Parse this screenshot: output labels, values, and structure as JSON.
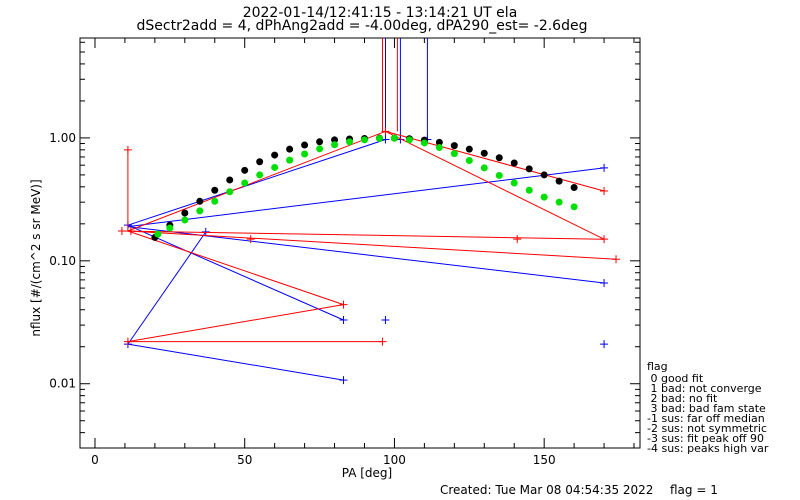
{
  "chart_data": {
    "type": "scatter",
    "title": "2022-01-14/12:41:15 - 13:14:21 UT ela",
    "subtitle": "dSectr2add = 4, dPhAng2add = -4.00deg, dPA290_est=  -2.6deg",
    "xlabel": "PA [deg]",
    "ylabel": "nflux [#/(cm^2 s sr MeV)]",
    "xlim": [
      -5,
      182
    ],
    "ylim": [
      0.003,
      6.5
    ],
    "yscale": "log",
    "x_ticks": [
      0,
      50,
      100,
      150
    ],
    "x_tick_labels": [
      "0",
      "50",
      "100",
      "150"
    ],
    "y_ticks": [
      0.01,
      0.1,
      1.0
    ],
    "y_tick_labels": [
      "0.01",
      "0.10",
      "1.00"
    ],
    "grid": false,
    "series": [
      {
        "color": "#0000ff",
        "marker": "+",
        "points": [
          [
            11,
            0.195
          ],
          [
            37,
            0.172
          ],
          [
            11,
            0.021
          ],
          [
            83,
            0.033
          ],
          [
            97,
            0.033
          ],
          [
            170,
            0.021
          ],
          [
            83,
            0.0107
          ],
          [
            170,
            0.066
          ],
          [
            170,
            0.57
          ],
          [
            97,
            0.97
          ],
          [
            102,
            0.97
          ],
          [
            111,
            0.97
          ]
        ],
        "segments": [
          [
            [
              11,
              0.195
            ],
            [
              97,
              0.97
            ]
          ],
          [
            [
              11,
              0.195
            ],
            [
              83,
              0.033
            ]
          ],
          [
            [
              11,
              0.19
            ],
            [
              170,
              0.57
            ]
          ],
          [
            [
              11,
              0.19
            ],
            [
              170,
              0.066
            ]
          ],
          [
            [
              37,
              0.172
            ],
            [
              11,
              0.021
            ]
          ],
          [
            [
              11,
              0.021
            ],
            [
              83,
              0.0107
            ]
          ],
          [
            [
              97,
              0.97
            ],
            [
              97,
              6.5
            ]
          ],
          [
            [
              102,
              0.97
            ],
            [
              102,
              6.5
            ]
          ],
          [
            [
              111,
              0.97
            ],
            [
              111,
              6.5
            ]
          ]
        ]
      },
      {
        "color": "#ff0000",
        "marker": "+",
        "points": [
          [
            11,
            0.8
          ],
          [
            9,
            0.175
          ],
          [
            12,
            0.175
          ],
          [
            52,
            0.15
          ],
          [
            83,
            0.044
          ],
          [
            11,
            0.022
          ],
          [
            96,
            0.022
          ],
          [
            97,
            1.13
          ],
          [
            141,
            0.15
          ],
          [
            170,
            0.15
          ],
          [
            170,
            0.37
          ],
          [
            174,
            0.103
          ]
        ],
        "segments": [
          [
            [
              11,
              0.8
            ],
            [
              11,
              0.175
            ]
          ],
          [
            [
              9,
              0.175
            ],
            [
              170,
              0.15
            ]
          ],
          [
            [
              11,
              0.175
            ],
            [
              83,
              0.044
            ]
          ],
          [
            [
              11,
              0.175
            ],
            [
              174,
              0.103
            ]
          ],
          [
            [
              11,
              0.175
            ],
            [
              97,
              1.13
            ]
          ],
          [
            [
              97,
              1.13
            ],
            [
              170,
              0.15
            ]
          ],
          [
            [
              97,
              1.13
            ],
            [
              170,
              0.37
            ]
          ],
          [
            [
              11,
              0.022
            ],
            [
              83,
              0.044
            ]
          ],
          [
            [
              11,
              0.022
            ],
            [
              96,
              0.022
            ]
          ],
          [
            [
              96,
              1.13
            ],
            [
              96,
              6.5
            ]
          ],
          [
            [
              101,
              1.13
            ],
            [
              101,
              6.5
            ]
          ]
        ]
      },
      {
        "color": "#000000",
        "marker": "dot",
        "points": [
          [
            20,
            0.155
          ],
          [
            25,
            0.195
          ],
          [
            30,
            0.245
          ],
          [
            35,
            0.305
          ],
          [
            40,
            0.375
          ],
          [
            45,
            0.455
          ],
          [
            50,
            0.545
          ],
          [
            55,
            0.64
          ],
          [
            60,
            0.725
          ],
          [
            65,
            0.81
          ],
          [
            70,
            0.875
          ],
          [
            75,
            0.93
          ],
          [
            80,
            0.965
          ],
          [
            85,
            0.98
          ],
          [
            90,
            0.99
          ],
          [
            95,
            0.995
          ],
          [
            100,
            0.995
          ],
          [
            105,
            0.985
          ],
          [
            110,
            0.96
          ],
          [
            115,
            0.92
          ],
          [
            120,
            0.865
          ],
          [
            125,
            0.81
          ],
          [
            130,
            0.75
          ],
          [
            135,
            0.69
          ],
          [
            140,
            0.625
          ],
          [
            145,
            0.56
          ],
          [
            150,
            0.5
          ],
          [
            155,
            0.445
          ],
          [
            160,
            0.395
          ]
        ]
      },
      {
        "color": "#00e000",
        "marker": "dot",
        "points": [
          [
            21,
            0.165
          ],
          [
            25,
            0.185
          ],
          [
            30,
            0.215
          ],
          [
            35,
            0.255
          ],
          [
            40,
            0.305
          ],
          [
            45,
            0.365
          ],
          [
            50,
            0.43
          ],
          [
            55,
            0.5
          ],
          [
            60,
            0.575
          ],
          [
            65,
            0.66
          ],
          [
            70,
            0.74
          ],
          [
            75,
            0.815
          ],
          [
            80,
            0.88
          ],
          [
            85,
            0.93
          ],
          [
            90,
            0.965
          ],
          [
            95,
            0.99
          ],
          [
            100,
            0.995
          ],
          [
            105,
            0.965
          ],
          [
            110,
            0.91
          ],
          [
            115,
            0.835
          ],
          [
            120,
            0.745
          ],
          [
            125,
            0.655
          ],
          [
            130,
            0.57
          ],
          [
            135,
            0.495
          ],
          [
            140,
            0.43
          ],
          [
            145,
            0.375
          ],
          [
            150,
            0.33
          ],
          [
            155,
            0.3
          ],
          [
            160,
            0.275
          ]
        ]
      }
    ]
  },
  "legend": {
    "heading": "flag",
    "items": [
      " 0 good fit",
      " 1 bad: not converge",
      " 2 bad: no fit",
      " 3 bad: bad fam state",
      "-1 sus: far off median",
      "-2 sus: not symmetric",
      "-3 sus: fit peak off 90",
      "-4 sus: peaks high var"
    ]
  },
  "footer": {
    "created": "Created: Tue Mar 08 04:54:35 2022",
    "flag": "flag = 1"
  }
}
